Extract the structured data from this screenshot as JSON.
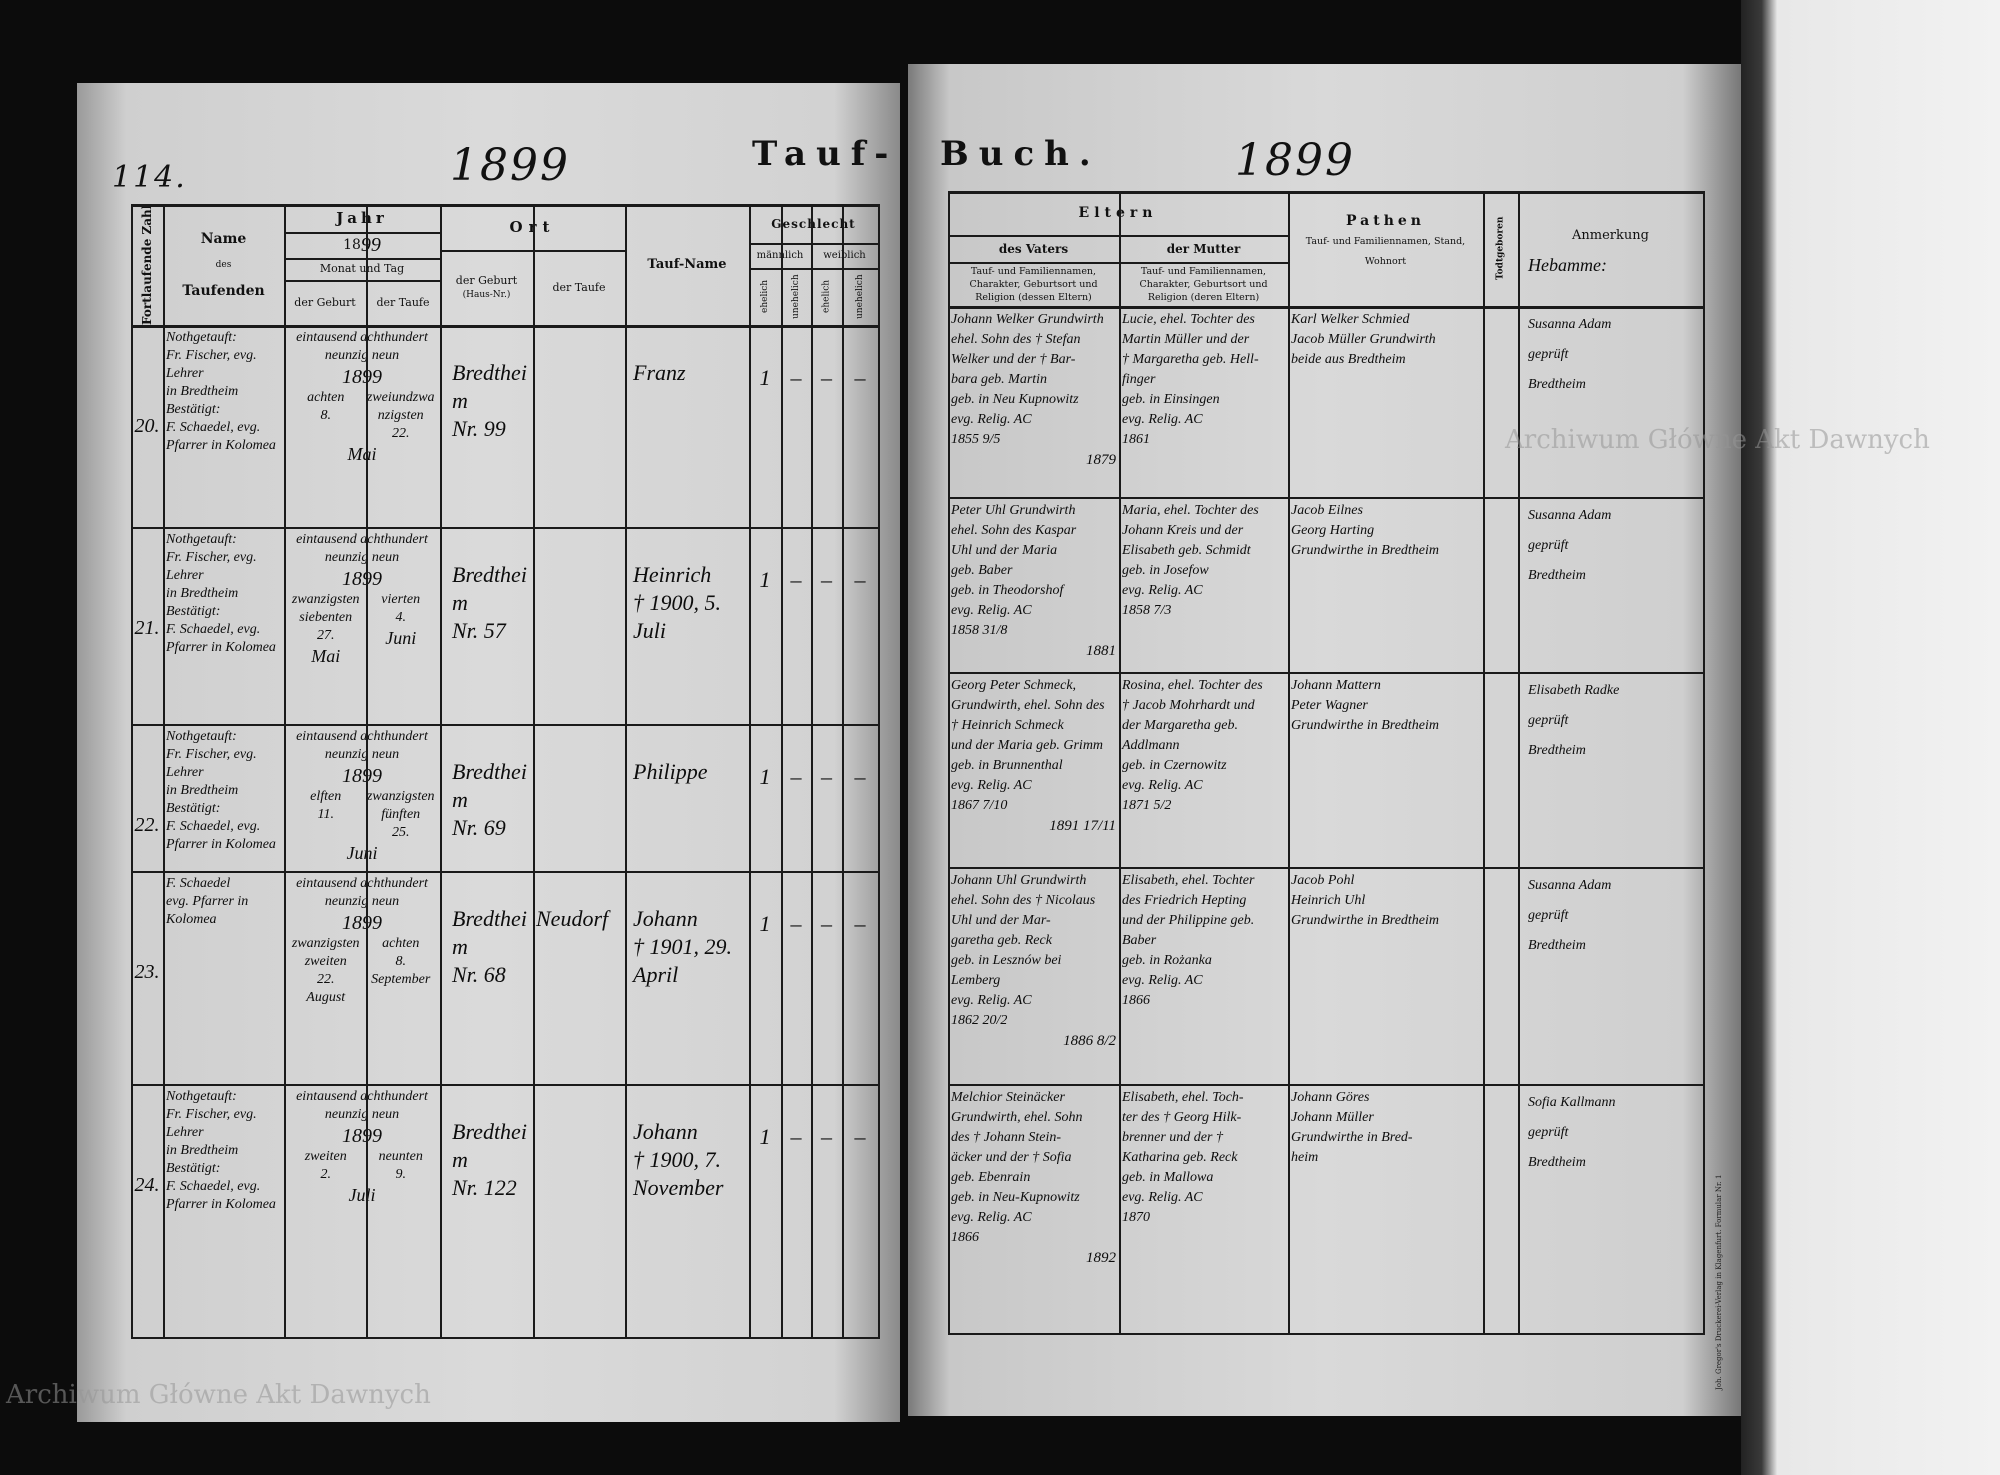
{
  "page_number": "114.",
  "left_title_year": "1899",
  "right_title_year": "1899",
  "book_title": {
    "part1": "Tauf-",
    "part2": "Buch."
  },
  "watermark": "Archiwum Główne Akt Dawnych",
  "printer_imprint": "Joh. Gregor's Druckerei-Verlag in Klagenfurt. Formular Nr. 1",
  "left_header": {
    "number": "Fortlaufende Zahl",
    "name": [
      "Name",
      "des",
      "Taufenden"
    ],
    "year": "Jahr",
    "year_value_printed": "18",
    "year_value_hand": "99",
    "month_day": "Monat und Tag",
    "birth": "der Geburt",
    "baptism": "der Taufe",
    "place": "Ort",
    "place_birth": "der Geburt",
    "place_birth_note": "(Haus-Nr.)",
    "place_baptism": "der Taufe",
    "baptismal_name": "Tauf-Name",
    "sex": "Geschlecht",
    "male": "männlich",
    "female": "weiblich",
    "legit": "ehelich",
    "illegit": "unehelich"
  },
  "right_header": {
    "parents": "Eltern",
    "father": "des Vaters",
    "mother": "der Mutter",
    "father_desc": [
      "Tauf- und Familiennamen,",
      "Charakter, Geburtsort und",
      "Religion (dessen Eltern)"
    ],
    "mother_desc": [
      "Tauf- und Familiennamen,",
      "Charakter, Geburtsort und",
      "Religion (deren Eltern)"
    ],
    "godparents": "Pathen",
    "godparents_desc": [
      "Tauf- und Familiennamen, Stand,",
      "Wohnort"
    ],
    "stillborn": "Todtgeboren",
    "remarks": "Anmerkung",
    "remarks_hand": "Hebamme:"
  },
  "entries": [
    {
      "number": "20.",
      "name": [
        "Nothgetauft:",
        "Fr. Fischer, evg. Lehrer",
        "in Bredtheim",
        "Bestätigt:",
        "F. Schaedel, evg.",
        "Pfarrer in Kolomea"
      ],
      "year_words": [
        "eintausend achthundert",
        "neunzig neun"
      ],
      "year": "1899",
      "birth": [
        "achten",
        "8."
      ],
      "baptism": [
        "zweiundzwanzigsten",
        "22."
      ],
      "birth_month": "Mai",
      "baptism_month": "",
      "place_birth": [
        "Bredtheim",
        "Nr. 99"
      ],
      "place_baptism": [],
      "baptismal_name": [
        "Franz"
      ],
      "sex": [
        "1",
        "–",
        "–",
        "–"
      ],
      "father": [
        "Johann Welker Grundwirth",
        "ehel. Sohn des † Stefan",
        "Welker und der † Bar-",
        "bara geb. Martin",
        "geb. in Neu Kupnowitz",
        "evg. Relig. AC",
        "1855 9/5"
      ],
      "marriage": "1879",
      "mother": [
        "Lucie, ehel. Tochter des",
        "Martin Müller und der",
        "† Margaretha geb. Hell-",
        "finger",
        "geb. in Einsingen",
        "evg. Relig. AC",
        "1861"
      ],
      "godparents": [
        "Karl Welker Schmied",
        "Jacob Müller Grundwirth",
        "beide aus Bredtheim"
      ],
      "remarks": [
        "Susanna Adam",
        "geprüft",
        "Bredtheim"
      ]
    },
    {
      "number": "21.",
      "name": [
        "Nothgetauft:",
        "Fr. Fischer, evg. Lehrer",
        "in Bredtheim",
        "Bestätigt:",
        "F. Schaedel, evg.",
        "Pfarrer in Kolomea"
      ],
      "year_words": [
        "eintausend achthundert",
        "neunzig neun"
      ],
      "year": "1899",
      "birth": [
        "zwanzigsten",
        "siebenten",
        "27."
      ],
      "baptism": [
        "vierten",
        "4."
      ],
      "birth_month": "Mai",
      "baptism_month": "Juni",
      "place_birth": [
        "Bredtheim",
        "Nr. 57"
      ],
      "place_baptism": [],
      "baptismal_name": [
        "Heinrich",
        "† 1900, 5. Juli"
      ],
      "sex": [
        "1",
        "–",
        "–",
        "–"
      ],
      "father": [
        "Peter Uhl Grundwirth",
        "ehel. Sohn des Kaspar",
        "Uhl und der Maria",
        "geb. Baber",
        "geb. in Theodorshof",
        "evg. Relig. AC",
        "1858 31/8"
      ],
      "marriage": "1881",
      "mother": [
        "Maria, ehel. Tochter des",
        "Johann Kreis und der",
        "Elisabeth geb. Schmidt",
        "geb. in Josefow",
        "evg. Relig. AC",
        "1858 7/3"
      ],
      "godparents": [
        "Jacob Eilnes",
        "Georg Harting",
        "Grundwirthe in Bredtheim"
      ],
      "remarks": [
        "Susanna Adam",
        "geprüft",
        "Bredtheim"
      ]
    },
    {
      "number": "22.",
      "name": [
        "Nothgetauft:",
        "Fr. Fischer, evg. Lehrer",
        "in Bredtheim",
        "Bestätigt:",
        "F. Schaedel, evg.",
        "Pfarrer in Kolomea"
      ],
      "year_words": [
        "eintausend achthundert",
        "neunzig neun"
      ],
      "year": "1899",
      "birth": [
        "elften",
        "11."
      ],
      "baptism": [
        "zwanzigsten",
        "fünften",
        "25."
      ],
      "birth_month": "Juni",
      "baptism_month": "",
      "place_birth": [
        "Bredtheim",
        "Nr. 69"
      ],
      "place_baptism": [],
      "baptismal_name": [
        "Philippe"
      ],
      "sex": [
        "1",
        "–",
        "–",
        "–"
      ],
      "father": [
        "Georg Peter Schmeck,",
        "Grundwirth, ehel. Sohn des",
        "† Heinrich Schmeck",
        "und der Maria geb. Grimm",
        "geb. in Brunnenthal",
        "evg. Relig. AC",
        "1867 7/10"
      ],
      "marriage": "1891 17/11",
      "mother": [
        "Rosina, ehel. Tochter des",
        "† Jacob Mohrhardt und",
        "der Margaretha geb.",
        "Addlmann",
        "geb. in Czernowitz",
        "evg. Relig. AC",
        "1871 5/2"
      ],
      "godparents": [
        "Johann Mattern",
        "Peter Wagner",
        "Grundwirthe in Bredtheim"
      ],
      "remarks": [
        "Elisabeth Radke",
        "geprüft",
        "Bredtheim"
      ]
    },
    {
      "number": "23.",
      "name": [
        "F. Schaedel",
        "evg. Pfarrer in",
        "Kolomea"
      ],
      "year_words": [
        "eintausend achthundert",
        "neunzig neun"
      ],
      "year": "1899",
      "birth": [
        "zwanzigsten",
        "zweiten",
        "22.",
        "August"
      ],
      "baptism": [
        "achten",
        "8.",
        "September"
      ],
      "birth_month": "",
      "baptism_month": "",
      "place_birth": [
        "Bredtheim",
        "Nr. 68"
      ],
      "place_baptism": [
        "Neudorf"
      ],
      "baptismal_name": [
        "Johann",
        "† 1901, 29. April"
      ],
      "sex": [
        "1",
        "–",
        "–",
        "–"
      ],
      "father": [
        "Johann Uhl Grundwirth",
        "ehel. Sohn des † Nicolaus",
        "Uhl und der Mar-",
        "garetha geb. Reck",
        "geb. in Lesznów bei",
        "Lemberg",
        "evg. Relig. AC",
        "1862 20/2"
      ],
      "marriage": "1886 8/2",
      "mother": [
        "Elisabeth, ehel. Tochter",
        "des Friedrich Hepting",
        "und der Philippine geb.",
        "Baber",
        "geb. in Rożanka",
        "evg. Relig. AC",
        "1866"
      ],
      "godparents": [
        "Jacob Pohl",
        "Heinrich Uhl",
        "Grundwirthe in Bredtheim"
      ],
      "remarks": [
        "Susanna Adam",
        "geprüft",
        "Bredtheim"
      ]
    },
    {
      "number": "24.",
      "name": [
        "Nothgetauft:",
        "Fr. Fischer, evg. Lehrer",
        "in Bredtheim",
        "Bestätigt:",
        "F. Schaedel, evg.",
        "Pfarrer in Kolomea"
      ],
      "year_words": [
        "eintausend achthundert",
        "neunzig neun"
      ],
      "year": "1899",
      "birth": [
        "zweiten",
        "2."
      ],
      "baptism": [
        "neunten",
        "9."
      ],
      "birth_month": "Juli",
      "baptism_month": "",
      "place_birth": [
        "Bredtheim",
        "Nr. 122"
      ],
      "place_baptism": [],
      "baptismal_name": [
        "Johann",
        "† 1900, 7. November"
      ],
      "sex": [
        "1",
        "–",
        "–",
        "–"
      ],
      "father": [
        "Melchior Steinäcker",
        "Grundwirth, ehel. Sohn",
        "des † Johann Stein-",
        "äcker und der † Sofia",
        "geb. Ebenrain",
        "geb. in Neu-Kupnowitz",
        "evg. Relig. AC",
        "1866"
      ],
      "marriage": "1892",
      "mother": [
        "Elisabeth, ehel. Toch-",
        "ter des † Georg Hilk-",
        "brenner und der †",
        "Katharina geb. Reck",
        "geb. in Mallowa",
        "evg. Relig. AC",
        "1870"
      ],
      "godparents": [
        "Johann Göres",
        "Johann Müller",
        "Grundwirthe in Bred-",
        "heim"
      ],
      "remarks": [
        "Sofia Kallmann",
        "geprüft",
        "Bredtheim"
      ]
    }
  ]
}
